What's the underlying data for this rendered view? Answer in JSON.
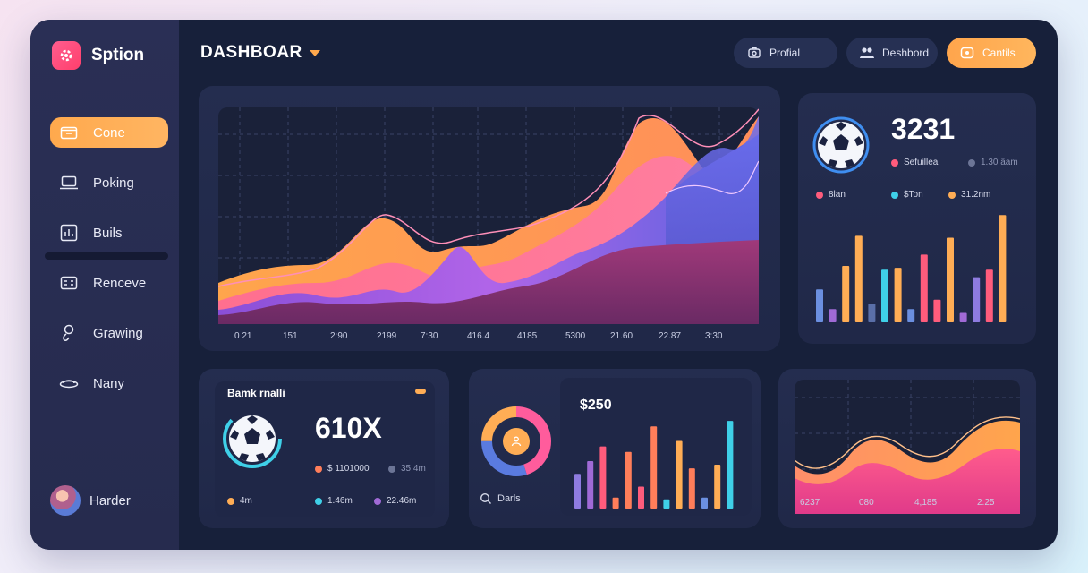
{
  "brand": {
    "name": "Sption"
  },
  "header": {
    "title": "Dashboar",
    "buttons": [
      {
        "label": "Profial"
      },
      {
        "label": "Deshbord"
      },
      {
        "label": "Cantils"
      }
    ]
  },
  "sidebar": {
    "items": [
      {
        "label": "Cone"
      },
      {
        "label": "Poking"
      },
      {
        "label": "Buils"
      },
      {
        "label": "Renceve"
      },
      {
        "label": "Grawing"
      },
      {
        "label": "Nany"
      }
    ],
    "user": {
      "name": "Harder"
    }
  },
  "main_chart": {
    "x_ticks": [
      "0 21",
      "151",
      "2:90",
      "2199",
      "7:30",
      "416.4",
      "4185",
      "5300",
      "21.60",
      "22.87",
      "3:30"
    ]
  },
  "stats_card": {
    "value": "3231",
    "legend_top": [
      {
        "label": "Sefuilleal",
        "color": "#ff5c7c"
      },
      {
        "label": "1.30 äam",
        "color": "#6c7596"
      }
    ],
    "legend_row": [
      {
        "label": "8lan",
        "color": "#ff5c7c"
      },
      {
        "label": "$Ton",
        "color": "#3fd0e8"
      },
      {
        "label": "31.2nm",
        "color": "#ffad55"
      }
    ],
    "bars": [
      {
        "value": 35,
        "color": "#6b8fe0"
      },
      {
        "value": 14,
        "color": "#a06ad6"
      },
      {
        "value": 60,
        "color": "#ffad55"
      },
      {
        "value": 92,
        "color": "#ffad55"
      },
      {
        "value": 20,
        "color": "#5a6fa8"
      },
      {
        "value": 56,
        "color": "#3fd0e8"
      },
      {
        "value": 58,
        "color": "#ffad55"
      },
      {
        "value": 14,
        "color": "#6b8fe0"
      },
      {
        "value": 72,
        "color": "#ff5c7c"
      },
      {
        "value": 24,
        "color": "#ff5c7c"
      },
      {
        "value": 90,
        "color": "#ffad55"
      },
      {
        "value": 10,
        "color": "#a06ad6"
      },
      {
        "value": 48,
        "color": "#8e7be0"
      },
      {
        "value": 56,
        "color": "#ff5c7c"
      },
      {
        "value": 114,
        "color": "#ffad55"
      }
    ]
  },
  "bank_card": {
    "title": "Bamk rnalli",
    "value": "610X",
    "legend_top": [
      {
        "label": "$ 1101000",
        "color": "#ff7e5a"
      },
      {
        "label": "35 4m",
        "color": "#6c7596"
      }
    ],
    "legend_row": [
      {
        "label": "4m",
        "color": "#ffad55"
      },
      {
        "label": "1.46m",
        "color": "#3fd0e8"
      },
      {
        "label": "22.46m",
        "color": "#a06ad6"
      }
    ]
  },
  "donut_card": {
    "search_label": "Darls",
    "amount": "$250",
    "segments": [
      {
        "value": 45,
        "color": "#ff5c9c"
      },
      {
        "value": 30,
        "color": "#5a7be0"
      },
      {
        "value": 25,
        "color": "#ffad55"
      }
    ],
    "bars": [
      {
        "value": 38,
        "color": "#8e7be0"
      },
      {
        "value": 52,
        "color": "#a06ad6"
      },
      {
        "value": 68,
        "color": "#ff5c7c"
      },
      {
        "value": 12,
        "color": "#ff7e5a"
      },
      {
        "value": 62,
        "color": "#ff7e5a"
      },
      {
        "value": 24,
        "color": "#ff5c7c"
      },
      {
        "value": 90,
        "color": "#ff7e5a"
      },
      {
        "value": 10,
        "color": "#3fd0e8"
      },
      {
        "value": 74,
        "color": "#ffad55"
      },
      {
        "value": 44,
        "color": "#ff7e5a"
      },
      {
        "value": 12,
        "color": "#6b8fe0"
      },
      {
        "value": 48,
        "color": "#ffad55"
      },
      {
        "value": 96,
        "color": "#3fd0e8"
      }
    ]
  },
  "mini_chart": {
    "x_ticks": [
      "6237",
      "080",
      "4,185",
      "2.25"
    ]
  }
}
